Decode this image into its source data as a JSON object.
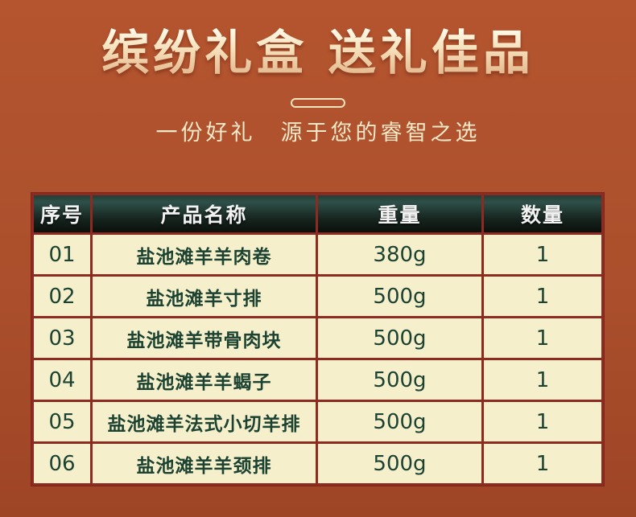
{
  "header": {
    "title": "缤纷礼盒 送礼佳品",
    "subtitle": "一份好礼　源于您的睿智之选"
  },
  "table": {
    "columns": [
      "序号",
      "产品名称",
      "重量",
      "数量"
    ],
    "rows": [
      {
        "no": "01",
        "name": "盐池滩羊羊肉卷",
        "weight": "380g",
        "qty": "1"
      },
      {
        "no": "02",
        "name": "盐池滩羊寸排",
        "weight": "500g",
        "qty": "1"
      },
      {
        "no": "03",
        "name": "盐池滩羊带骨肉块",
        "weight": "500g",
        "qty": "1"
      },
      {
        "no": "04",
        "name": "盐池滩羊羊蝎子",
        "weight": "500g",
        "qty": "1"
      },
      {
        "no": "05",
        "name": "盐池滩羊法式小切羊排",
        "weight": "500g",
        "qty": "1"
      },
      {
        "no": "06",
        "name": "盐池滩羊羊颈排",
        "weight": "500g",
        "qty": "1"
      }
    ]
  },
  "colors": {
    "background_top": "#b4552f",
    "background_bottom": "#9e4526",
    "table_border": "#8e2b20",
    "cell_background": "#f5efcc",
    "cell_text": "#1c4231",
    "header_cell_top": "#2e5048",
    "header_cell_bottom": "#0b100d",
    "header_text": "#f2f2f2",
    "title_gradient_top": "#fff9e9",
    "title_gradient_bottom": "#e3b68b",
    "accent_cream": "#f6e9c9"
  }
}
